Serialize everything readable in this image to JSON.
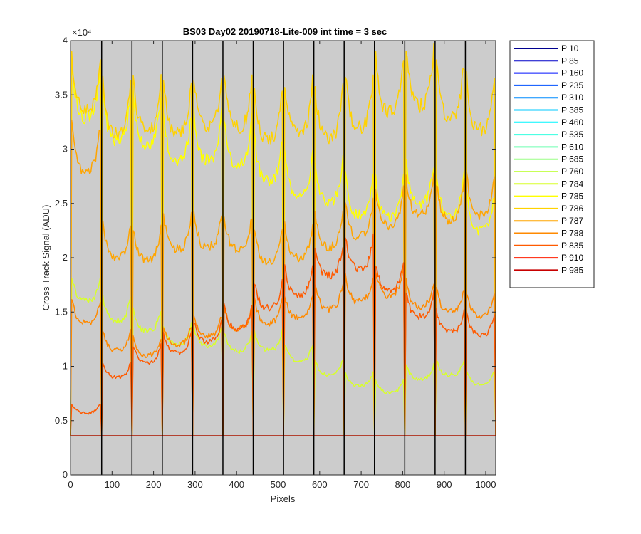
{
  "chart_data": {
    "type": "line",
    "title": "BS03 Day02 20190718-Lite-009 int time = 3 sec",
    "xlabel": "Pixels",
    "ylabel": "Cross Track Signal (ADU)",
    "xlim": [
      0,
      1024
    ],
    "ylim": [
      0,
      40000
    ],
    "y_exponent_label": "×10⁴",
    "x_ticks": [
      0,
      100,
      200,
      300,
      400,
      500,
      600,
      700,
      800,
      900,
      1000
    ],
    "y_ticks": [
      0,
      5000,
      10000,
      15000,
      20000,
      25000,
      30000,
      35000,
      40000
    ],
    "y_tick_labels": [
      "0",
      "0.5",
      "1",
      "1.5",
      "2",
      "2.5",
      "3",
      "3.5",
      "4"
    ],
    "x_tick_labels": [
      "0",
      "100",
      "200",
      "300",
      "400",
      "500",
      "600",
      "700",
      "800",
      "900",
      "1000"
    ],
    "grid": false,
    "legend_position": "outside-right",
    "background": "#cccccc",
    "baseline": 3600,
    "segment_boundaries": [
      75,
      148,
      221,
      294,
      367,
      440,
      513,
      586,
      659,
      732,
      805,
      878,
      951
    ],
    "series": [
      {
        "name": "P 10",
        "color": "#00008f",
        "profile": [
          3600,
          3600,
          3600,
          3600,
          3600,
          3600,
          3600,
          3600,
          3600,
          3600,
          3600,
          3600,
          3600,
          3600
        ]
      },
      {
        "name": "P 85",
        "color": "#0000c8",
        "profile": [
          3600,
          3600,
          3600,
          3600,
          3600,
          3600,
          3600,
          3600,
          3600,
          3600,
          3600,
          3600,
          3600,
          3600
        ]
      },
      {
        "name": "P 160",
        "color": "#0012ff",
        "profile": [
          3600,
          3600,
          3600,
          3600,
          3600,
          3600,
          3600,
          3600,
          3600,
          3600,
          3600,
          3600,
          3600,
          3600
        ]
      },
      {
        "name": "P 235",
        "color": "#0050ff",
        "profile": [
          3600,
          3600,
          3600,
          3600,
          3600,
          3600,
          3600,
          3600,
          3600,
          3600,
          3600,
          3600,
          3600,
          3600
        ]
      },
      {
        "name": "P 310",
        "color": "#008cff",
        "profile": [
          3600,
          3600,
          3600,
          3600,
          3600,
          3600,
          3600,
          3600,
          3600,
          3600,
          3600,
          3600,
          3600,
          3600
        ]
      },
      {
        "name": "P 385",
        "color": "#00c8ff",
        "profile": [
          3600,
          3600,
          3600,
          3600,
          3600,
          3600,
          3600,
          3600,
          3600,
          3600,
          3600,
          3600,
          3600,
          3600
        ]
      },
      {
        "name": "P 460",
        "color": "#00f5ff",
        "profile": [
          3600,
          3600,
          3600,
          3600,
          3600,
          3600,
          3600,
          3600,
          3600,
          3600,
          3600,
          3600,
          3600,
          3600
        ]
      },
      {
        "name": "P 535",
        "color": "#32ffe0",
        "profile": [
          3600,
          3600,
          3600,
          3600,
          3600,
          3600,
          3600,
          3600,
          3600,
          3600,
          3600,
          3600,
          3600,
          3600
        ]
      },
      {
        "name": "P 610",
        "color": "#6effb0",
        "profile": [
          3600,
          3600,
          3600,
          3600,
          3600,
          3600,
          3600,
          3600,
          3600,
          3600,
          3600,
          3600,
          3600,
          3600
        ]
      },
      {
        "name": "P 685",
        "color": "#9aff86",
        "profile": [
          3600,
          3600,
          3600,
          3600,
          3600,
          3600,
          3600,
          3600,
          3600,
          3600,
          3600,
          3600,
          3600,
          3600
        ]
      },
      {
        "name": "P 760",
        "color": "#c8ff56",
        "profile": [
          3600,
          3600,
          3600,
          3600,
          3600,
          3600,
          3600,
          3600,
          3600,
          3600,
          3600,
          3600,
          3600,
          3600
        ]
      },
      {
        "name": "P 784",
        "color": "#d8ff2c",
        "profile": [
          16000,
          14200,
          13300,
          12000,
          11900,
          11400,
          11500,
          10500,
          9200,
          8200,
          7600,
          8800,
          9200,
          8300
        ]
      },
      {
        "name": "P 785",
        "color": "#ffff00",
        "profile": [
          33000,
          30800,
          30500,
          29000,
          29000,
          28500,
          27000,
          25700,
          25200,
          24000,
          23800,
          25000,
          24000,
          22500
        ]
      },
      {
        "name": "P 786",
        "color": "#ffd200",
        "profile": [
          33500,
          31500,
          31800,
          31500,
          32000,
          32000,
          31000,
          31500,
          31000,
          32000,
          33500,
          34000,
          33000,
          31800
        ]
      },
      {
        "name": "P 787",
        "color": "#ffa500",
        "profile": [
          28000,
          20000,
          19800,
          20800,
          21000,
          20800,
          19600,
          20000,
          21000,
          22000,
          23000,
          24000,
          23500,
          24000
        ]
      },
      {
        "name": "P 788",
        "color": "#ff8a00",
        "profile": [
          14000,
          11500,
          11000,
          12000,
          12800,
          13500,
          14000,
          14500,
          15300,
          16000,
          16500,
          15500,
          15000,
          14700
        ]
      },
      {
        "name": "P 835",
        "color": "#ff5a00",
        "profile": [
          5700,
          9000,
          10400,
          11300,
          12300,
          13500,
          15400,
          16600,
          18400,
          19000,
          17000,
          14600,
          13200,
          12900
        ]
      },
      {
        "name": "P 910",
        "color": "#ff1e00",
        "profile": [
          3600,
          3600,
          3600,
          3600,
          3600,
          3600,
          3600,
          3600,
          3600,
          3600,
          3600,
          3600,
          3600,
          3600
        ]
      },
      {
        "name": "P 985",
        "color": "#c80000",
        "profile": [
          3600,
          3600,
          3600,
          3600,
          3600,
          3600,
          3600,
          3600,
          3600,
          3600,
          3600,
          3600,
          3600,
          3600
        ]
      }
    ]
  }
}
